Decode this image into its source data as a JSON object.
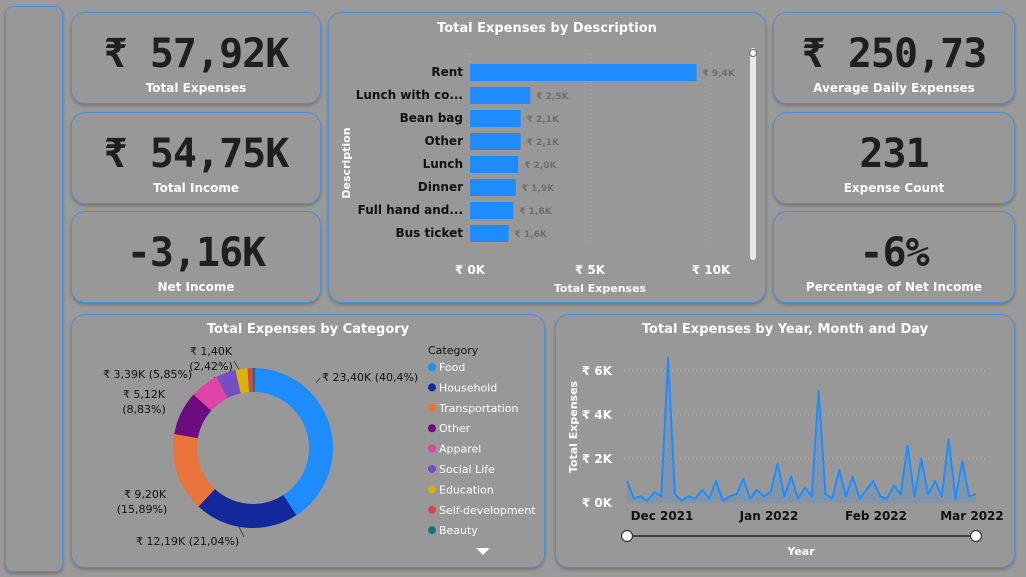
{
  "kpis": {
    "total_expenses": {
      "value": "₹ 57,92K",
      "label": "Total Expenses"
    },
    "total_income": {
      "value": "₹ 54,75K",
      "label": "Total Income"
    },
    "net_income": {
      "value": "-3,16K",
      "label": "Net Income"
    },
    "avg_daily": {
      "value": "₹ 250,73",
      "label": "Average Daily Expenses"
    },
    "expense_count": {
      "value": "231",
      "label": "Expense Count"
    },
    "pct_net_income": {
      "value": "-6%",
      "label": "Percentage of Net Income"
    }
  },
  "bar_chart": {
    "title": "Total Expenses by Description",
    "ylabel": "Description",
    "xlabel": "Total Expenses",
    "ticks": [
      "₹ 0K",
      "₹ 5K",
      "₹ 10K"
    ],
    "color": "#1e8cff"
  },
  "donut_chart": {
    "title": "Total Expenses by Category",
    "legend_title": "Category",
    "labels": [
      {
        "t1": "₹ 23,40K (40,4%)",
        "t2": ""
      },
      {
        "t1": "₹ 12,19K (21,04%)",
        "t2": ""
      },
      {
        "t1": "₹ 9,20K",
        "t2": "(15,89%)"
      },
      {
        "t1": "₹ 5,12K",
        "t2": "(8,83%)"
      },
      {
        "t1": "₹ 3,39K (5,85%)",
        "t2": ""
      },
      {
        "t1": "₹ 1,40K",
        "t2": "(2,42%)"
      }
    ]
  },
  "line_chart": {
    "title": "Total Expenses by Year, Month and Day",
    "ylabel": "Total Expenses",
    "xlabel": "Year",
    "yticks": [
      "₹ 6K",
      "₹ 4K",
      "₹ 2K",
      "₹ 0K"
    ],
    "xticks": [
      "Dec 2021",
      "Jan 2022",
      "Feb 2022",
      "Mar 2022"
    ],
    "slider": {
      "start": 0,
      "end": 1
    }
  },
  "chart_data": [
    {
      "type": "bar",
      "title": "Total Expenses by Description",
      "xlabel": "Total Expenses",
      "ylabel": "Description",
      "categories": [
        "Rent",
        "Lunch with co...",
        "Bean bag",
        "Other",
        "Lunch",
        "Dinner",
        "Full hand and...",
        "Bus ticket"
      ],
      "values": [
        9.4,
        2.5,
        2.1,
        2.1,
        2.0,
        1.9,
        1.8,
        1.6
      ],
      "value_labels": [
        "₹ 9,4K",
        "₹ 2,5K",
        "₹ 2,1K",
        "₹ 2,1K",
        "₹ 2,0K",
        "₹ 1,9K",
        "₹ 1,8K",
        "₹ 1,6K"
      ],
      "xlim": [
        0,
        10
      ]
    },
    {
      "type": "pie",
      "title": "Total Expenses by Category",
      "categories": [
        "Food",
        "Household",
        "Transportation",
        "Other",
        "Apparel",
        "Social Life",
        "Education",
        "Self-development",
        "Beauty"
      ],
      "values": [
        23.4,
        12.19,
        9.2,
        5.12,
        3.39,
        2.3,
        1.4,
        0.6,
        0.32
      ],
      "colors": [
        "#1e8cff",
        "#13289a",
        "#e8743b",
        "#6c0c7e",
        "#e044a7",
        "#744ec2",
        "#d9b300",
        "#d64550",
        "#197278"
      ],
      "legend": "right"
    },
    {
      "type": "line",
      "title": "Total Expenses by Year, Month and Day",
      "xlabel": "Year",
      "ylabel": "Total Expenses",
      "x": [
        "2021-11-27",
        "2021-11-29",
        "2021-12-01",
        "2021-12-03",
        "2021-12-05",
        "2021-12-07",
        "2021-12-09",
        "2021-12-11",
        "2021-12-13",
        "2021-12-15",
        "2021-12-17",
        "2021-12-19",
        "2021-12-21",
        "2021-12-23",
        "2021-12-25",
        "2021-12-27",
        "2021-12-29",
        "2021-12-31",
        "2022-01-02",
        "2022-01-04",
        "2022-01-06",
        "2022-01-08",
        "2022-01-10",
        "2022-01-12",
        "2022-01-14",
        "2022-01-16",
        "2022-01-18",
        "2022-01-20",
        "2022-01-22",
        "2022-01-24",
        "2022-01-26",
        "2022-01-28",
        "2022-01-30",
        "2022-02-01",
        "2022-02-03",
        "2022-02-05",
        "2022-02-07",
        "2022-02-09",
        "2022-02-11",
        "2022-02-13",
        "2022-02-15",
        "2022-02-17",
        "2022-02-19",
        "2022-02-21",
        "2022-02-23",
        "2022-02-25",
        "2022-02-27",
        "2022-03-01",
        "2022-03-03",
        "2022-03-05",
        "2022-03-07",
        "2022-03-09"
      ],
      "y": [
        1.0,
        0.2,
        0.3,
        0.1,
        0.5,
        0.3,
        6.6,
        0.4,
        0.1,
        0.3,
        0.2,
        0.6,
        0.2,
        1.0,
        0.1,
        0.3,
        0.4,
        1.1,
        0.2,
        0.6,
        0.3,
        0.5,
        1.8,
        0.3,
        1.2,
        0.2,
        0.7,
        0.3,
        5.1,
        0.4,
        0.2,
        1.5,
        0.3,
        1.2,
        0.2,
        0.6,
        1.0,
        0.3,
        0.2,
        0.8,
        0.4,
        2.6,
        0.3,
        2.0,
        0.4,
        1.0,
        0.3,
        2.9,
        0.2,
        1.9,
        0.3,
        0.4
      ],
      "ylim": [
        0,
        7
      ],
      "grid": true
    }
  ]
}
